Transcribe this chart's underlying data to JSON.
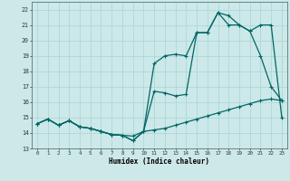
{
  "xlabel": "Humidex (Indice chaleur)",
  "bg_color": "#cce8e8",
  "grid_color": "#add8d8",
  "line_color": "#006666",
  "xmin": -0.5,
  "xmax": 23.5,
  "ymin": 13,
  "ymax": 22.5,
  "hours": [
    0,
    1,
    2,
    3,
    4,
    5,
    6,
    7,
    8,
    9,
    10,
    11,
    12,
    13,
    14,
    15,
    16,
    17,
    18,
    19,
    20,
    21,
    22,
    23
  ],
  "line1": [
    14.6,
    14.9,
    14.5,
    14.8,
    14.4,
    14.3,
    14.1,
    13.9,
    13.85,
    13.5,
    14.1,
    16.7,
    16.6,
    16.4,
    16.5,
    20.5,
    20.5,
    21.8,
    21.6,
    21.0,
    20.6,
    19.0,
    17.0,
    16.1
  ],
  "line2": [
    14.6,
    14.9,
    14.5,
    14.8,
    14.4,
    14.3,
    14.1,
    13.9,
    13.85,
    13.8,
    14.1,
    14.2,
    14.3,
    14.5,
    14.7,
    14.9,
    15.1,
    15.3,
    15.5,
    15.7,
    15.9,
    16.1,
    16.2,
    16.1
  ],
  "line3": [
    14.6,
    14.9,
    14.5,
    14.8,
    14.4,
    14.3,
    14.1,
    13.9,
    13.85,
    13.5,
    14.1,
    18.5,
    19.0,
    19.1,
    19.0,
    20.5,
    20.5,
    21.8,
    21.0,
    21.0,
    20.6,
    21.0,
    21.0,
    15.0
  ]
}
